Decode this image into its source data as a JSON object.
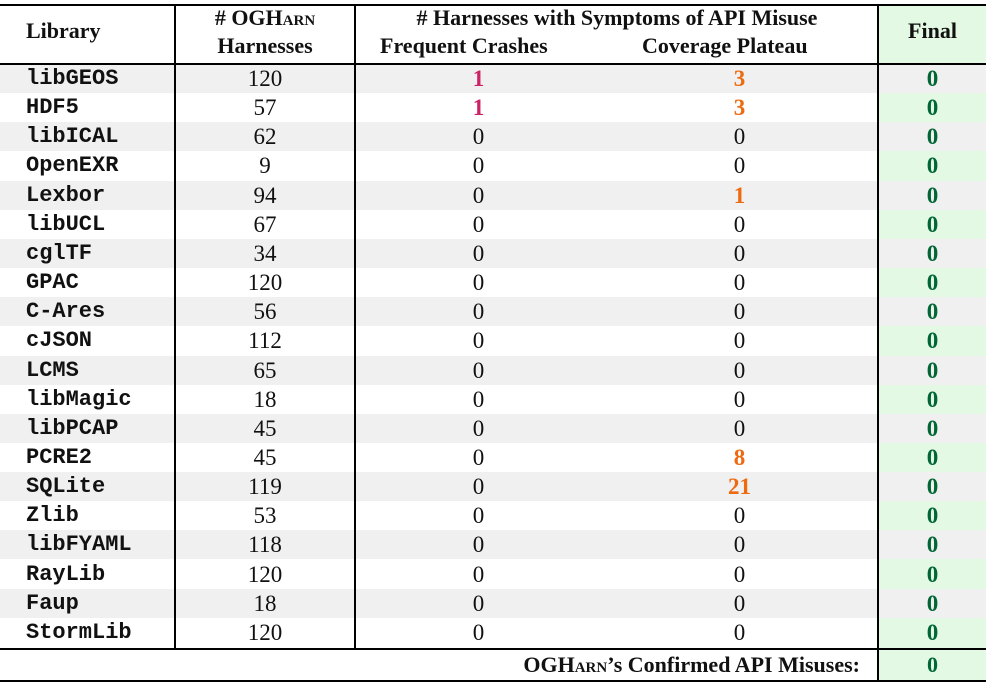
{
  "header": {
    "library": "Library",
    "harnesses_prefix": "# OG",
    "harnesses_sc": "Harn",
    "harnesses_line2": "Harnesses",
    "symptoms_group": "# Harnesses with Symptoms of API Misuse",
    "frequent_crashes": "Frequent Crashes",
    "coverage_plateau": "Coverage Plateau",
    "final": "Final"
  },
  "rows": [
    {
      "library": "libGEOS",
      "harnesses": "120",
      "crashes": "1",
      "plateau": "3",
      "final": "0",
      "crashes_hl": true,
      "plateau_hl": true
    },
    {
      "library": "HDF5",
      "harnesses": "57",
      "crashes": "1",
      "plateau": "3",
      "final": "0",
      "crashes_hl": true,
      "plateau_hl": true
    },
    {
      "library": "libICAL",
      "harnesses": "62",
      "crashes": "0",
      "plateau": "0",
      "final": "0"
    },
    {
      "library": "OpenEXR",
      "harnesses": "9",
      "crashes": "0",
      "plateau": "0",
      "final": "0"
    },
    {
      "library": "Lexbor",
      "harnesses": "94",
      "crashes": "0",
      "plateau": "1",
      "final": "0",
      "plateau_hl": true
    },
    {
      "library": "libUCL",
      "harnesses": "67",
      "crashes": "0",
      "plateau": "0",
      "final": "0"
    },
    {
      "library": "cglTF",
      "harnesses": "34",
      "crashes": "0",
      "plateau": "0",
      "final": "0"
    },
    {
      "library": "GPAC",
      "harnesses": "120",
      "crashes": "0",
      "plateau": "0",
      "final": "0"
    },
    {
      "library": "C-Ares",
      "harnesses": "56",
      "crashes": "0",
      "plateau": "0",
      "final": "0"
    },
    {
      "library": "cJSON",
      "harnesses": "112",
      "crashes": "0",
      "plateau": "0",
      "final": "0"
    },
    {
      "library": "LCMS",
      "harnesses": "65",
      "crashes": "0",
      "plateau": "0",
      "final": "0"
    },
    {
      "library": "libMagic",
      "harnesses": "18",
      "crashes": "0",
      "plateau": "0",
      "final": "0"
    },
    {
      "library": "libPCAP",
      "harnesses": "45",
      "crashes": "0",
      "plateau": "0",
      "final": "0"
    },
    {
      "library": "PCRE2",
      "harnesses": "45",
      "crashes": "0",
      "plateau": "8",
      "final": "0",
      "plateau_hl": true
    },
    {
      "library": "SQLite",
      "harnesses": "119",
      "crashes": "0",
      "plateau": "21",
      "final": "0",
      "plateau_hl": true
    },
    {
      "library": "Zlib",
      "harnesses": "53",
      "crashes": "0",
      "plateau": "0",
      "final": "0"
    },
    {
      "library": "libFYAML",
      "harnesses": "118",
      "crashes": "0",
      "plateau": "0",
      "final": "0"
    },
    {
      "library": "RayLib",
      "harnesses": "120",
      "crashes": "0",
      "plateau": "0",
      "final": "0"
    },
    {
      "library": "Faup",
      "harnesses": "18",
      "crashes": "0",
      "plateau": "0",
      "final": "0"
    },
    {
      "library": "StormLib",
      "harnesses": "120",
      "crashes": "0",
      "plateau": "0",
      "final": "0"
    }
  ],
  "footer": {
    "label_prefix": "OG",
    "label_sc": "Harn",
    "label_suffix": "’s Confirmed API Misuses:",
    "value": "0"
  },
  "colors": {
    "crash_highlight": "#cc2266",
    "plateau_highlight": "#ee6a11",
    "final_text": "#006634",
    "final_background": "#e4f9e4",
    "row_shade": "#f0f0f0"
  }
}
